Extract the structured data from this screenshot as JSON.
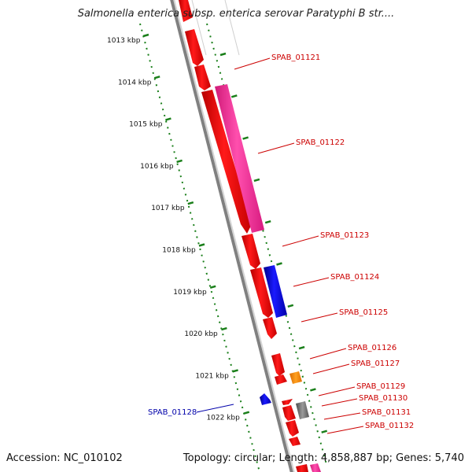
{
  "title": "Salmonella enterica subsp. enterica serovar Paratyphi B str....",
  "footer": {
    "accession": "Accession: NC_010102",
    "stats": "Topology: circular; Length: 4,858,887 bp; Genes: 5,740"
  },
  "colors": {
    "backbone": "#808080",
    "forward_strand_dots": "#1a7f1a",
    "cds_red": "#ff0000",
    "cds_pink": "#ff3399",
    "cds_blue": "#0000cc",
    "cds_orange": "#ff8800",
    "cds_gray": "#707070",
    "label_red": "#cc0000",
    "label_blue": "#0000aa"
  },
  "ruler": [
    {
      "label": "1013 kbp",
      "kbp": 1013
    },
    {
      "label": "1014 kbp",
      "kbp": 1014
    },
    {
      "label": "1015 kbp",
      "kbp": 1015
    },
    {
      "label": "1016 kbp",
      "kbp": 1016
    },
    {
      "label": "1017 kbp",
      "kbp": 1017
    },
    {
      "label": "1018 kbp",
      "kbp": 1018
    },
    {
      "label": "1019 kbp",
      "kbp": 1019
    },
    {
      "label": "1020 kbp",
      "kbp": 1020
    },
    {
      "label": "1021 kbp",
      "kbp": 1021
    },
    {
      "label": "1022 kbp",
      "kbp": 1022
    }
  ],
  "gene_labels": [
    {
      "name": "SPAB_01121",
      "side": "right",
      "color": "label_red"
    },
    {
      "name": "SPAB_01122",
      "side": "right",
      "color": "label_red"
    },
    {
      "name": "SPAB_01123",
      "side": "right",
      "color": "label_red"
    },
    {
      "name": "SPAB_01124",
      "side": "right",
      "color": "label_red"
    },
    {
      "name": "SPAB_01125",
      "side": "right",
      "color": "label_red"
    },
    {
      "name": "SPAB_01126",
      "side": "right",
      "color": "label_red"
    },
    {
      "name": "SPAB_01127",
      "side": "right",
      "color": "label_red"
    },
    {
      "name": "SPAB_01128",
      "side": "left",
      "color": "label_blue"
    },
    {
      "name": "SPAB_01129",
      "side": "right",
      "color": "label_red"
    },
    {
      "name": "SPAB_01130",
      "side": "right",
      "color": "label_red"
    },
    {
      "name": "SPAB_01131",
      "side": "right",
      "color": "label_red"
    },
    {
      "name": "SPAB_01132",
      "side": "right",
      "color": "label_red"
    }
  ]
}
